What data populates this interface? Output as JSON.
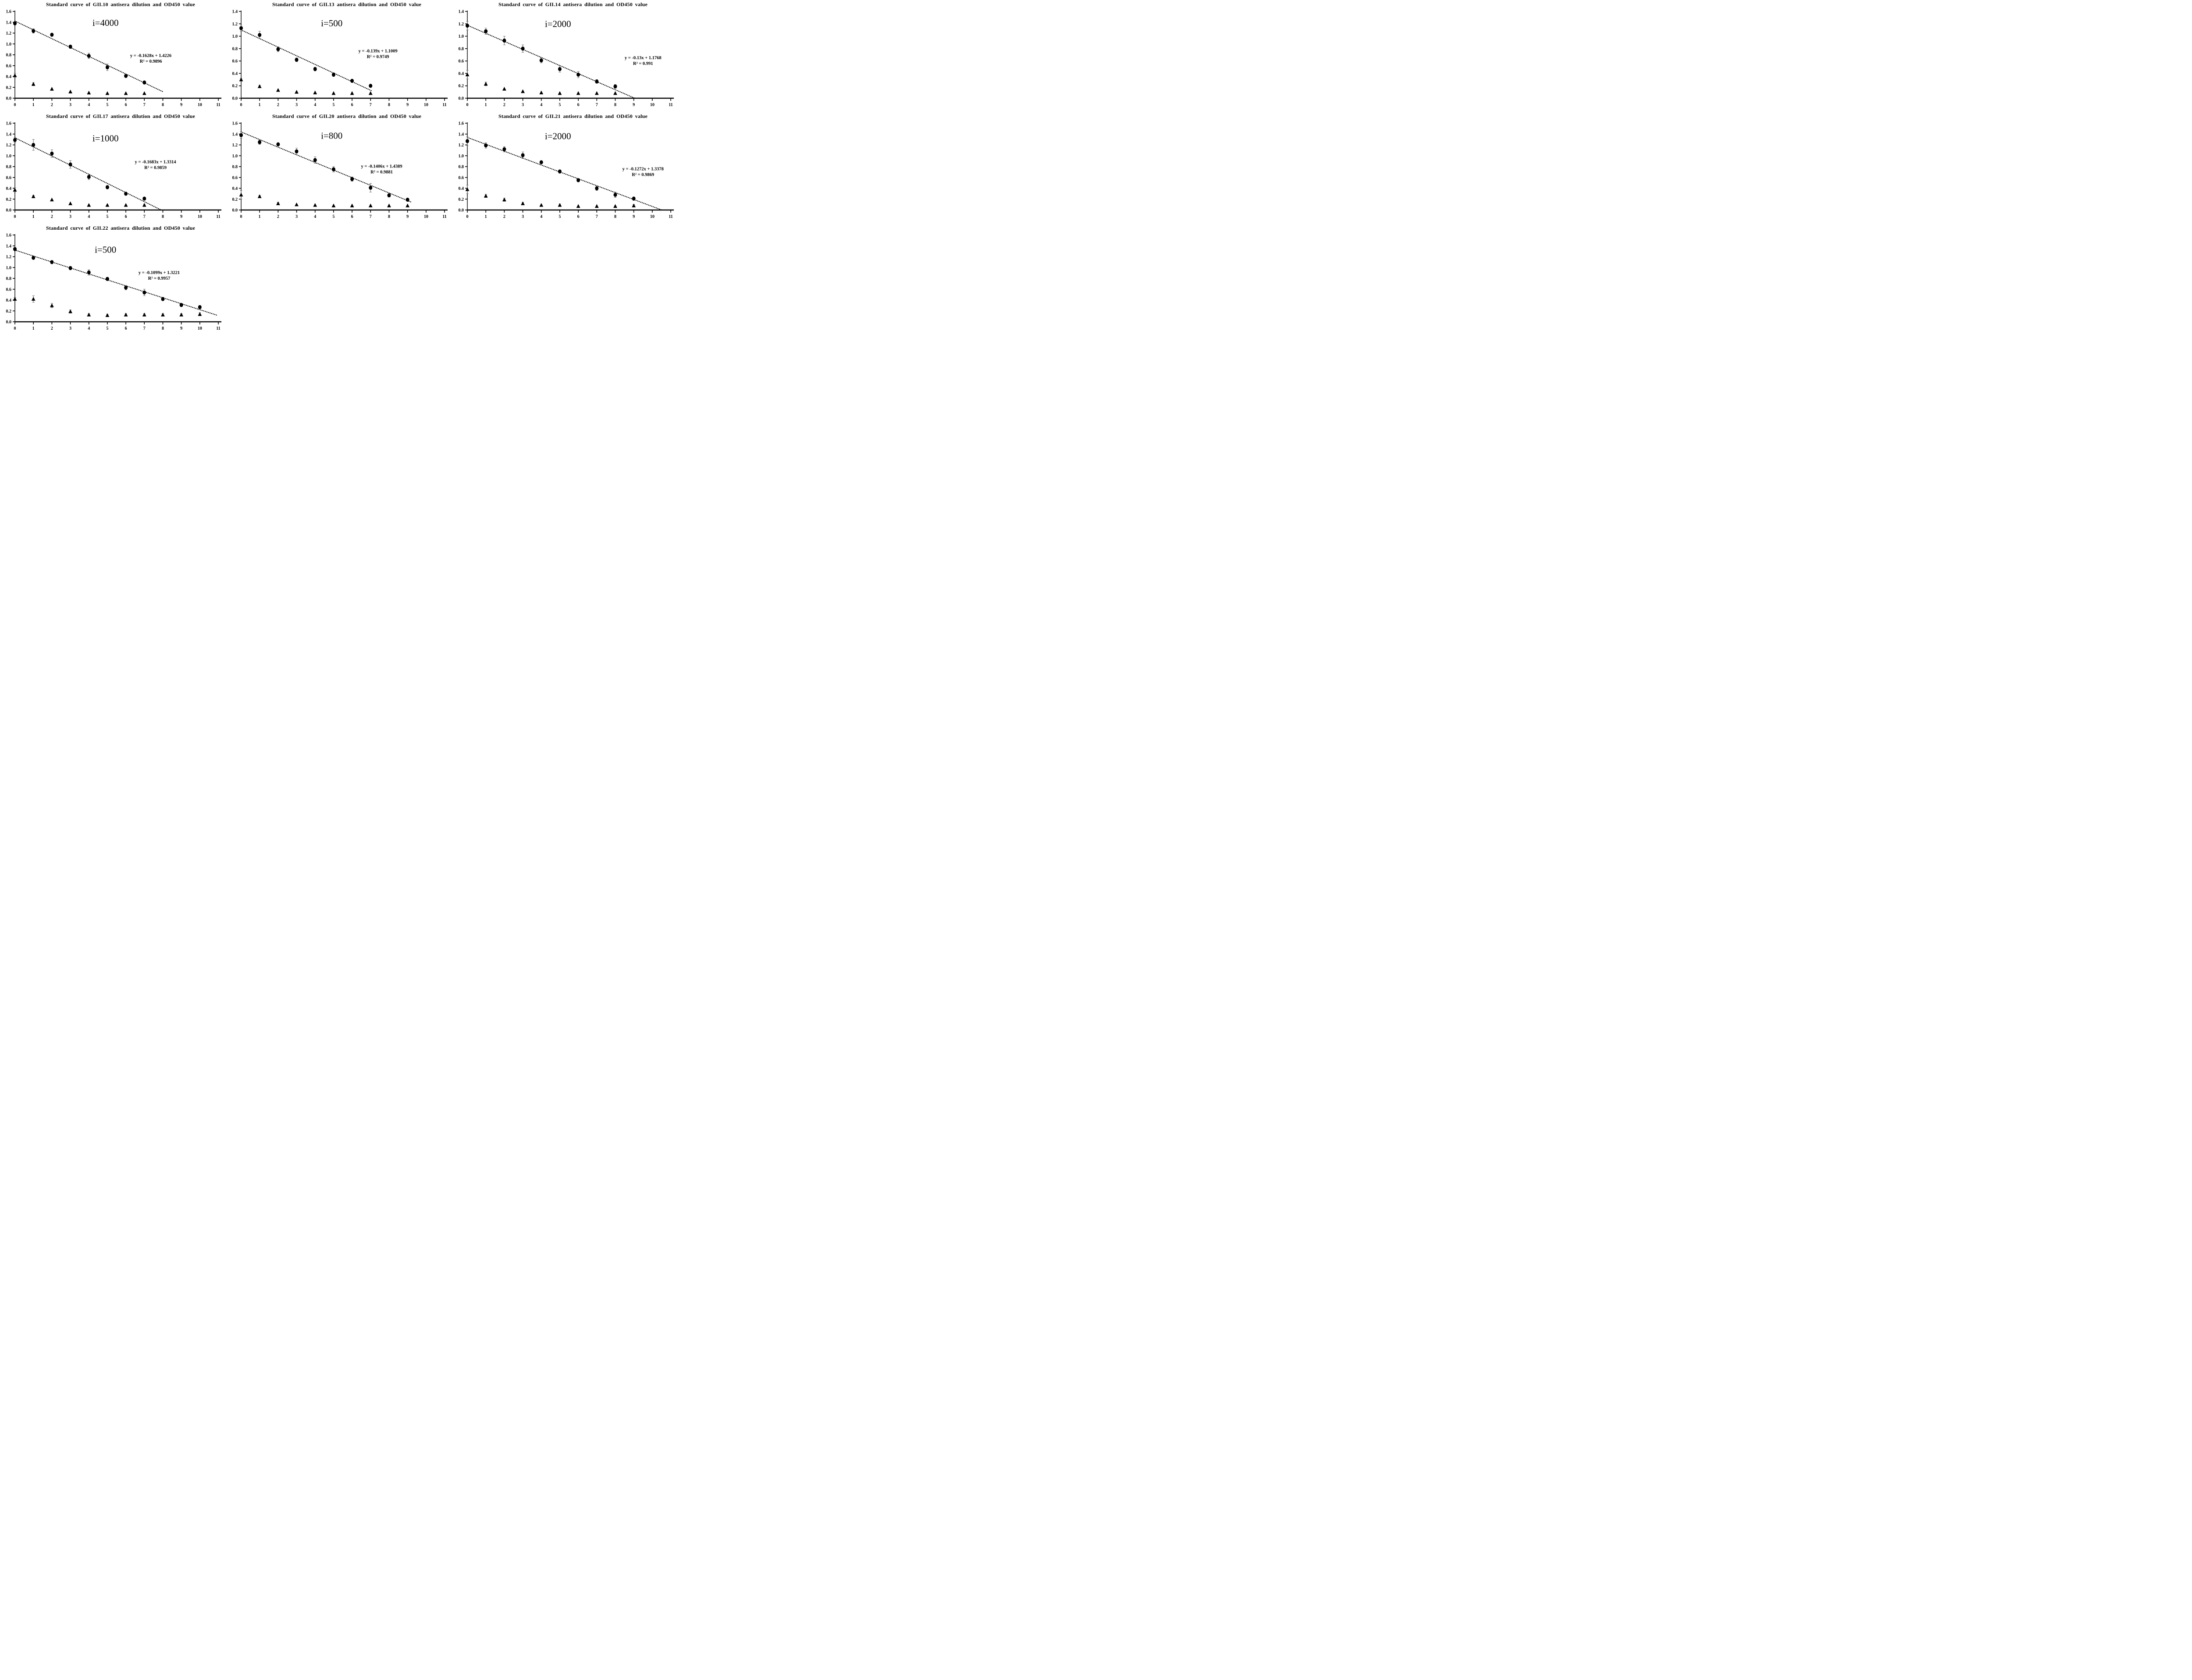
{
  "figure": {
    "background": "#ffffff",
    "axis_color": "#000000",
    "marker_color": "#000000",
    "trendline_color": "#000000",
    "error_bar_color": "#6e6e6e"
  },
  "chart_data": [
    {
      "type": "scatter",
      "title": "Standard curve of GII.10 antisera dilution and OD450 value",
      "dilution_label": "i=4000",
      "equation_line1": "y = -0.1628x + 1.4226",
      "equation_line2": "R² = 0.9896",
      "slope": -0.1628,
      "intercept": 1.4226,
      "trend_x_end": 8,
      "xlim": [
        0,
        11
      ],
      "ylim": [
        0,
        1.6
      ],
      "ytick_step": 0.2,
      "grid": false,
      "x": [
        0,
        1,
        2,
        3,
        4,
        5,
        6,
        7
      ],
      "series": [
        {
          "name": "antisera-od450",
          "marker": "circle",
          "values": [
            1.38,
            1.24,
            1.17,
            0.95,
            0.78,
            0.57,
            0.41,
            0.29
          ],
          "errors": [
            0.03,
            0.04,
            0.02,
            0.03,
            0.05,
            0.06,
            0.02,
            0.02
          ]
        },
        {
          "name": "negative-control",
          "marker": "triangle",
          "values": [
            0.42,
            0.26,
            0.17,
            0.12,
            0.1,
            0.09,
            0.09,
            0.09
          ],
          "errors": [
            0.04,
            0.03,
            0,
            0,
            0,
            0,
            0,
            0
          ]
        }
      ],
      "ilabel_pos": {
        "x": 4.9,
        "y": 1.39
      },
      "eq_pos": {
        "x": 7.35,
        "y": 0.76
      }
    },
    {
      "type": "scatter",
      "title": "Standard curve of GII.13 antisera dilution and OD450 value",
      "dilution_label": "i=500",
      "equation_line1": "y = -0.139x + 1.1009",
      "equation_line2": "R² = 0.9749",
      "slope": -0.139,
      "intercept": 1.1009,
      "trend_x_end": 7.1,
      "xlim": [
        0,
        11
      ],
      "ylim": [
        0,
        1.4
      ],
      "ytick_step": 0.2,
      "grid": false,
      "x": [
        0,
        1,
        2,
        3,
        4,
        5,
        6,
        7
      ],
      "series": [
        {
          "name": "antisera-od450",
          "marker": "circle",
          "values": [
            1.13,
            1.02,
            0.79,
            0.62,
            0.47,
            0.38,
            0.28,
            0.2
          ],
          "errors": [
            0.05,
            0.06,
            0.04,
            0.03,
            0.03,
            0.03,
            0.02,
            0.02
          ]
        },
        {
          "name": "negative-control",
          "marker": "triangle",
          "values": [
            0.3,
            0.19,
            0.13,
            0.1,
            0.09,
            0.08,
            0.08,
            0.08
          ],
          "errors": [
            0.02,
            0.02,
            0,
            0,
            0,
            0,
            0,
            0
          ]
        }
      ],
      "ilabel_pos": {
        "x": 4.9,
        "y": 1.21
      },
      "eq_pos": {
        "x": 7.4,
        "y": 0.74
      }
    },
    {
      "type": "scatter",
      "title": "Standard curve of GII.14 antisera dilution and OD450 value",
      "dilution_label": "i=2000",
      "equation_line1": "y = -0.13x + 1.1768",
      "equation_line2": "R² = 0.991",
      "slope": -0.13,
      "intercept": 1.1768,
      "trend_x_end": 9.05,
      "xlim": [
        0,
        11
      ],
      "ylim": [
        0,
        1.4
      ],
      "ytick_step": 0.2,
      "grid": false,
      "x": [
        0,
        1,
        2,
        3,
        4,
        5,
        6,
        7,
        8
      ],
      "series": [
        {
          "name": "antisera-od450",
          "marker": "circle",
          "values": [
            1.17,
            1.08,
            0.93,
            0.8,
            0.61,
            0.47,
            0.38,
            0.27,
            0.19
          ],
          "errors": [
            0.07,
            0.05,
            0.07,
            0.06,
            0.04,
            0.05,
            0.05,
            0.03,
            0.03
          ]
        },
        {
          "name": "negative-control",
          "marker": "triangle",
          "values": [
            0.38,
            0.23,
            0.15,
            0.11,
            0.09,
            0.08,
            0.08,
            0.08,
            0.08
          ],
          "errors": [
            0.07,
            0.03,
            0,
            0,
            0,
            0,
            0,
            0,
            0
          ]
        }
      ],
      "ilabel_pos": {
        "x": 4.9,
        "y": 1.2
      },
      "eq_pos": {
        "x": 9.5,
        "y": 0.63
      }
    },
    {
      "type": "scatter",
      "title": "Standard curve of GII.17 antisera dilution and OD450 value",
      "dilution_label": "i=1000",
      "equation_line1": "y = -0.1683x + 1.3314",
      "equation_line2": "R² = 0.9859",
      "slope": -0.1683,
      "intercept": 1.3314,
      "trend_x_end": 7.91,
      "xlim": [
        0,
        11
      ],
      "ylim": [
        0,
        1.6
      ],
      "ytick_step": 0.2,
      "grid": false,
      "x": [
        0,
        1,
        2,
        3,
        4,
        5,
        6,
        7
      ],
      "series": [
        {
          "name": "antisera-od450",
          "marker": "circle",
          "values": [
            1.29,
            1.2,
            1.04,
            0.84,
            0.61,
            0.42,
            0.3,
            0.21
          ],
          "errors": [
            0.05,
            0.1,
            0.07,
            0.07,
            0.05,
            0.03,
            0.02,
            0.02
          ]
        },
        {
          "name": "negative-control",
          "marker": "triangle",
          "values": [
            0.37,
            0.25,
            0.19,
            0.12,
            0.09,
            0.09,
            0.09,
            0.09
          ],
          "errors": [
            0.04,
            0.02,
            0,
            0,
            0,
            0,
            0,
            0.02
          ]
        }
      ],
      "ilabel_pos": {
        "x": 4.9,
        "y": 1.32
      },
      "eq_pos": {
        "x": 7.6,
        "y": 0.86
      }
    },
    {
      "type": "scatter",
      "title": "Standard curve of GII.20 antisera dilution and OD450 value",
      "dilution_label": "i=800",
      "equation_line1": "y = -0.1406x + 1.4389",
      "equation_line2": "R² = 0.9881",
      "slope": -0.1406,
      "intercept": 1.4389,
      "trend_x_end": 9.2,
      "xlim": [
        0,
        11
      ],
      "ylim": [
        0,
        1.6
      ],
      "ytick_step": 0.2,
      "grid": false,
      "x": [
        0,
        1,
        2,
        3,
        4,
        5,
        6,
        7,
        8,
        9
      ],
      "series": [
        {
          "name": "antisera-od450",
          "marker": "circle",
          "values": [
            1.38,
            1.25,
            1.21,
            1.08,
            0.92,
            0.75,
            0.57,
            0.41,
            0.27,
            0.19
          ],
          "errors": [
            0.06,
            0.04,
            0.02,
            0.06,
            0.06,
            0.05,
            0.04,
            0.08,
            0.03,
            0.02
          ]
        },
        {
          "name": "negative-control",
          "marker": "triangle",
          "values": [
            0.28,
            0.25,
            0.12,
            0.1,
            0.09,
            0.08,
            0.08,
            0.08,
            0.08,
            0.08
          ],
          "errors": [
            0.08,
            0.02,
            0.02,
            0,
            0,
            0,
            0,
            0,
            0,
            0
          ]
        }
      ],
      "ilabel_pos": {
        "x": 4.9,
        "y": 1.37
      },
      "eq_pos": {
        "x": 7.6,
        "y": 0.78
      }
    },
    {
      "type": "scatter",
      "title": "Standard curve of GII.21 antisera dilution and OD450 value",
      "dilution_label": "i=2000",
      "equation_line1": "y = -0.1272x + 1.3378",
      "equation_line2": "R² = 0.9869",
      "slope": -0.1272,
      "intercept": 1.3378,
      "trend_x_end": 10.5,
      "xlim": [
        0,
        11
      ],
      "ylim": [
        0,
        1.6
      ],
      "ytick_step": 0.2,
      "grid": false,
      "x": [
        0,
        1,
        2,
        3,
        4,
        5,
        6,
        7,
        8,
        9
      ],
      "series": [
        {
          "name": "antisera-od450",
          "marker": "circle",
          "values": [
            1.27,
            1.19,
            1.12,
            1.01,
            0.88,
            0.71,
            0.55,
            0.4,
            0.28,
            0.21
          ],
          "errors": [
            0.08,
            0.05,
            0.05,
            0.06,
            0.02,
            0.03,
            0.03,
            0.04,
            0.05,
            0.03
          ]
        },
        {
          "name": "negative-control",
          "marker": "triangle",
          "values": [
            0.38,
            0.26,
            0.19,
            0.12,
            0.09,
            0.09,
            0.07,
            0.07,
            0.07,
            0.08
          ],
          "errors": [
            0.08,
            0.03,
            0.03,
            0.02,
            0,
            0.02,
            0,
            0,
            0,
            0.02
          ]
        }
      ],
      "ilabel_pos": {
        "x": 4.9,
        "y": 1.36
      },
      "eq_pos": {
        "x": 9.5,
        "y": 0.73
      }
    },
    {
      "type": "scatter",
      "title": "Standard curve of GII.22 antisera dilution and OD450 value",
      "dilution_label": "i=500",
      "equation_line1": "y = -0.1099x + 1.3221",
      "equation_line2": "R² = 0.9957",
      "slope": -0.1099,
      "intercept": 1.3221,
      "trend_x_end": 10.95,
      "xlim": [
        0,
        11
      ],
      "ylim": [
        0,
        1.6
      ],
      "ytick_step": 0.2,
      "grid": false,
      "x": [
        0,
        1,
        2,
        3,
        4,
        5,
        6,
        7,
        8,
        9,
        10
      ],
      "series": [
        {
          "name": "antisera-od450",
          "marker": "circle",
          "values": [
            1.34,
            1.18,
            1.1,
            0.99,
            0.91,
            0.79,
            0.63,
            0.54,
            0.42,
            0.31,
            0.27
          ],
          "errors": [
            0.03,
            0.02,
            0.02,
            0.03,
            0.05,
            0.03,
            0.04,
            0.06,
            0.03,
            0.03,
            0.03
          ]
        },
        {
          "name": "negative-control",
          "marker": "triangle",
          "values": [
            0.42,
            0.42,
            0.3,
            0.19,
            0.13,
            0.12,
            0.13,
            0.13,
            0.13,
            0.13,
            0.14
          ],
          "errors": [
            0.03,
            0.06,
            0.04,
            0.03,
            0.02,
            0.02,
            0.02,
            0.02,
            0.02,
            0.02,
            0.03
          ]
        }
      ],
      "ilabel_pos": {
        "x": 4.9,
        "y": 1.33
      },
      "eq_pos": {
        "x": 7.8,
        "y": 0.88
      }
    }
  ]
}
